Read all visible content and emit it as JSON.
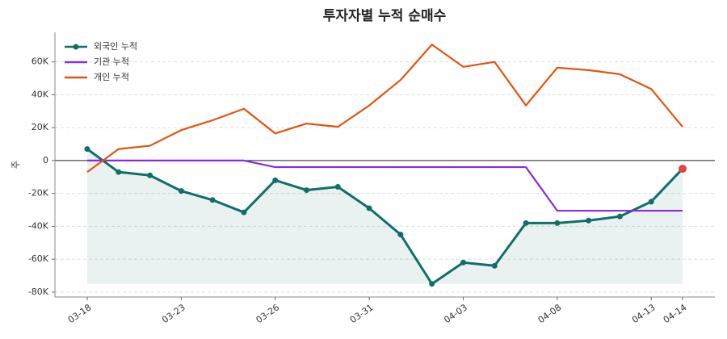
{
  "chart_data": {
    "type": "line",
    "title": "투자자별 누적 순매수",
    "y_label": "주",
    "categories": [
      "03-18",
      null,
      null,
      "03-23",
      null,
      null,
      "03-26",
      null,
      null,
      "03-31",
      null,
      null,
      "04-03",
      null,
      null,
      "04-08",
      null,
      null,
      "04-13",
      "04-14"
    ],
    "series": [
      {
        "name": "외국인 누적",
        "color": "#0f7068",
        "values": [
          7000,
          -7000,
          -9000,
          -18500,
          -24000,
          -31500,
          -12000,
          -18000,
          -16000,
          -29000,
          -45000,
          -75000,
          -62000,
          -64000,
          -38000,
          -38000,
          -36500,
          -34000,
          -25000,
          -5000
        ]
      },
      {
        "name": "기관 누적",
        "color": "#8a2be2",
        "values": [
          0,
          0,
          0,
          0,
          0,
          0,
          -4000,
          -4000,
          -4000,
          -4000,
          -4000,
          -4000,
          -4000,
          -4000,
          -4000,
          -30500,
          -30500,
          -30500,
          -30500,
          -30500
        ]
      },
      {
        "name": "개인 누적",
        "color": "#e0550f",
        "values": [
          -7000,
          7000,
          9000,
          18500,
          24500,
          31500,
          16500,
          22500,
          20500,
          33500,
          49000,
          70500,
          57000,
          60000,
          33500,
          56500,
          55000,
          52500,
          43500,
          20500
        ]
      }
    ],
    "highlight_color": "#e84040",
    "ylim": [
      -83000,
      78000
    ],
    "yticks": [
      {
        "value": -80000,
        "label": "-80K"
      },
      {
        "value": -60000,
        "label": "-60K"
      },
      {
        "value": -40000,
        "label": "-40K"
      },
      {
        "value": -20000,
        "label": "-20K"
      },
      0,
      {
        "value": 20000,
        "label": "20K"
      },
      {
        "value": 40000,
        "label": "40K"
      },
      {
        "value": 60000,
        "label": "60K"
      }
    ],
    "grid": true,
    "legend": "upper-left"
  }
}
